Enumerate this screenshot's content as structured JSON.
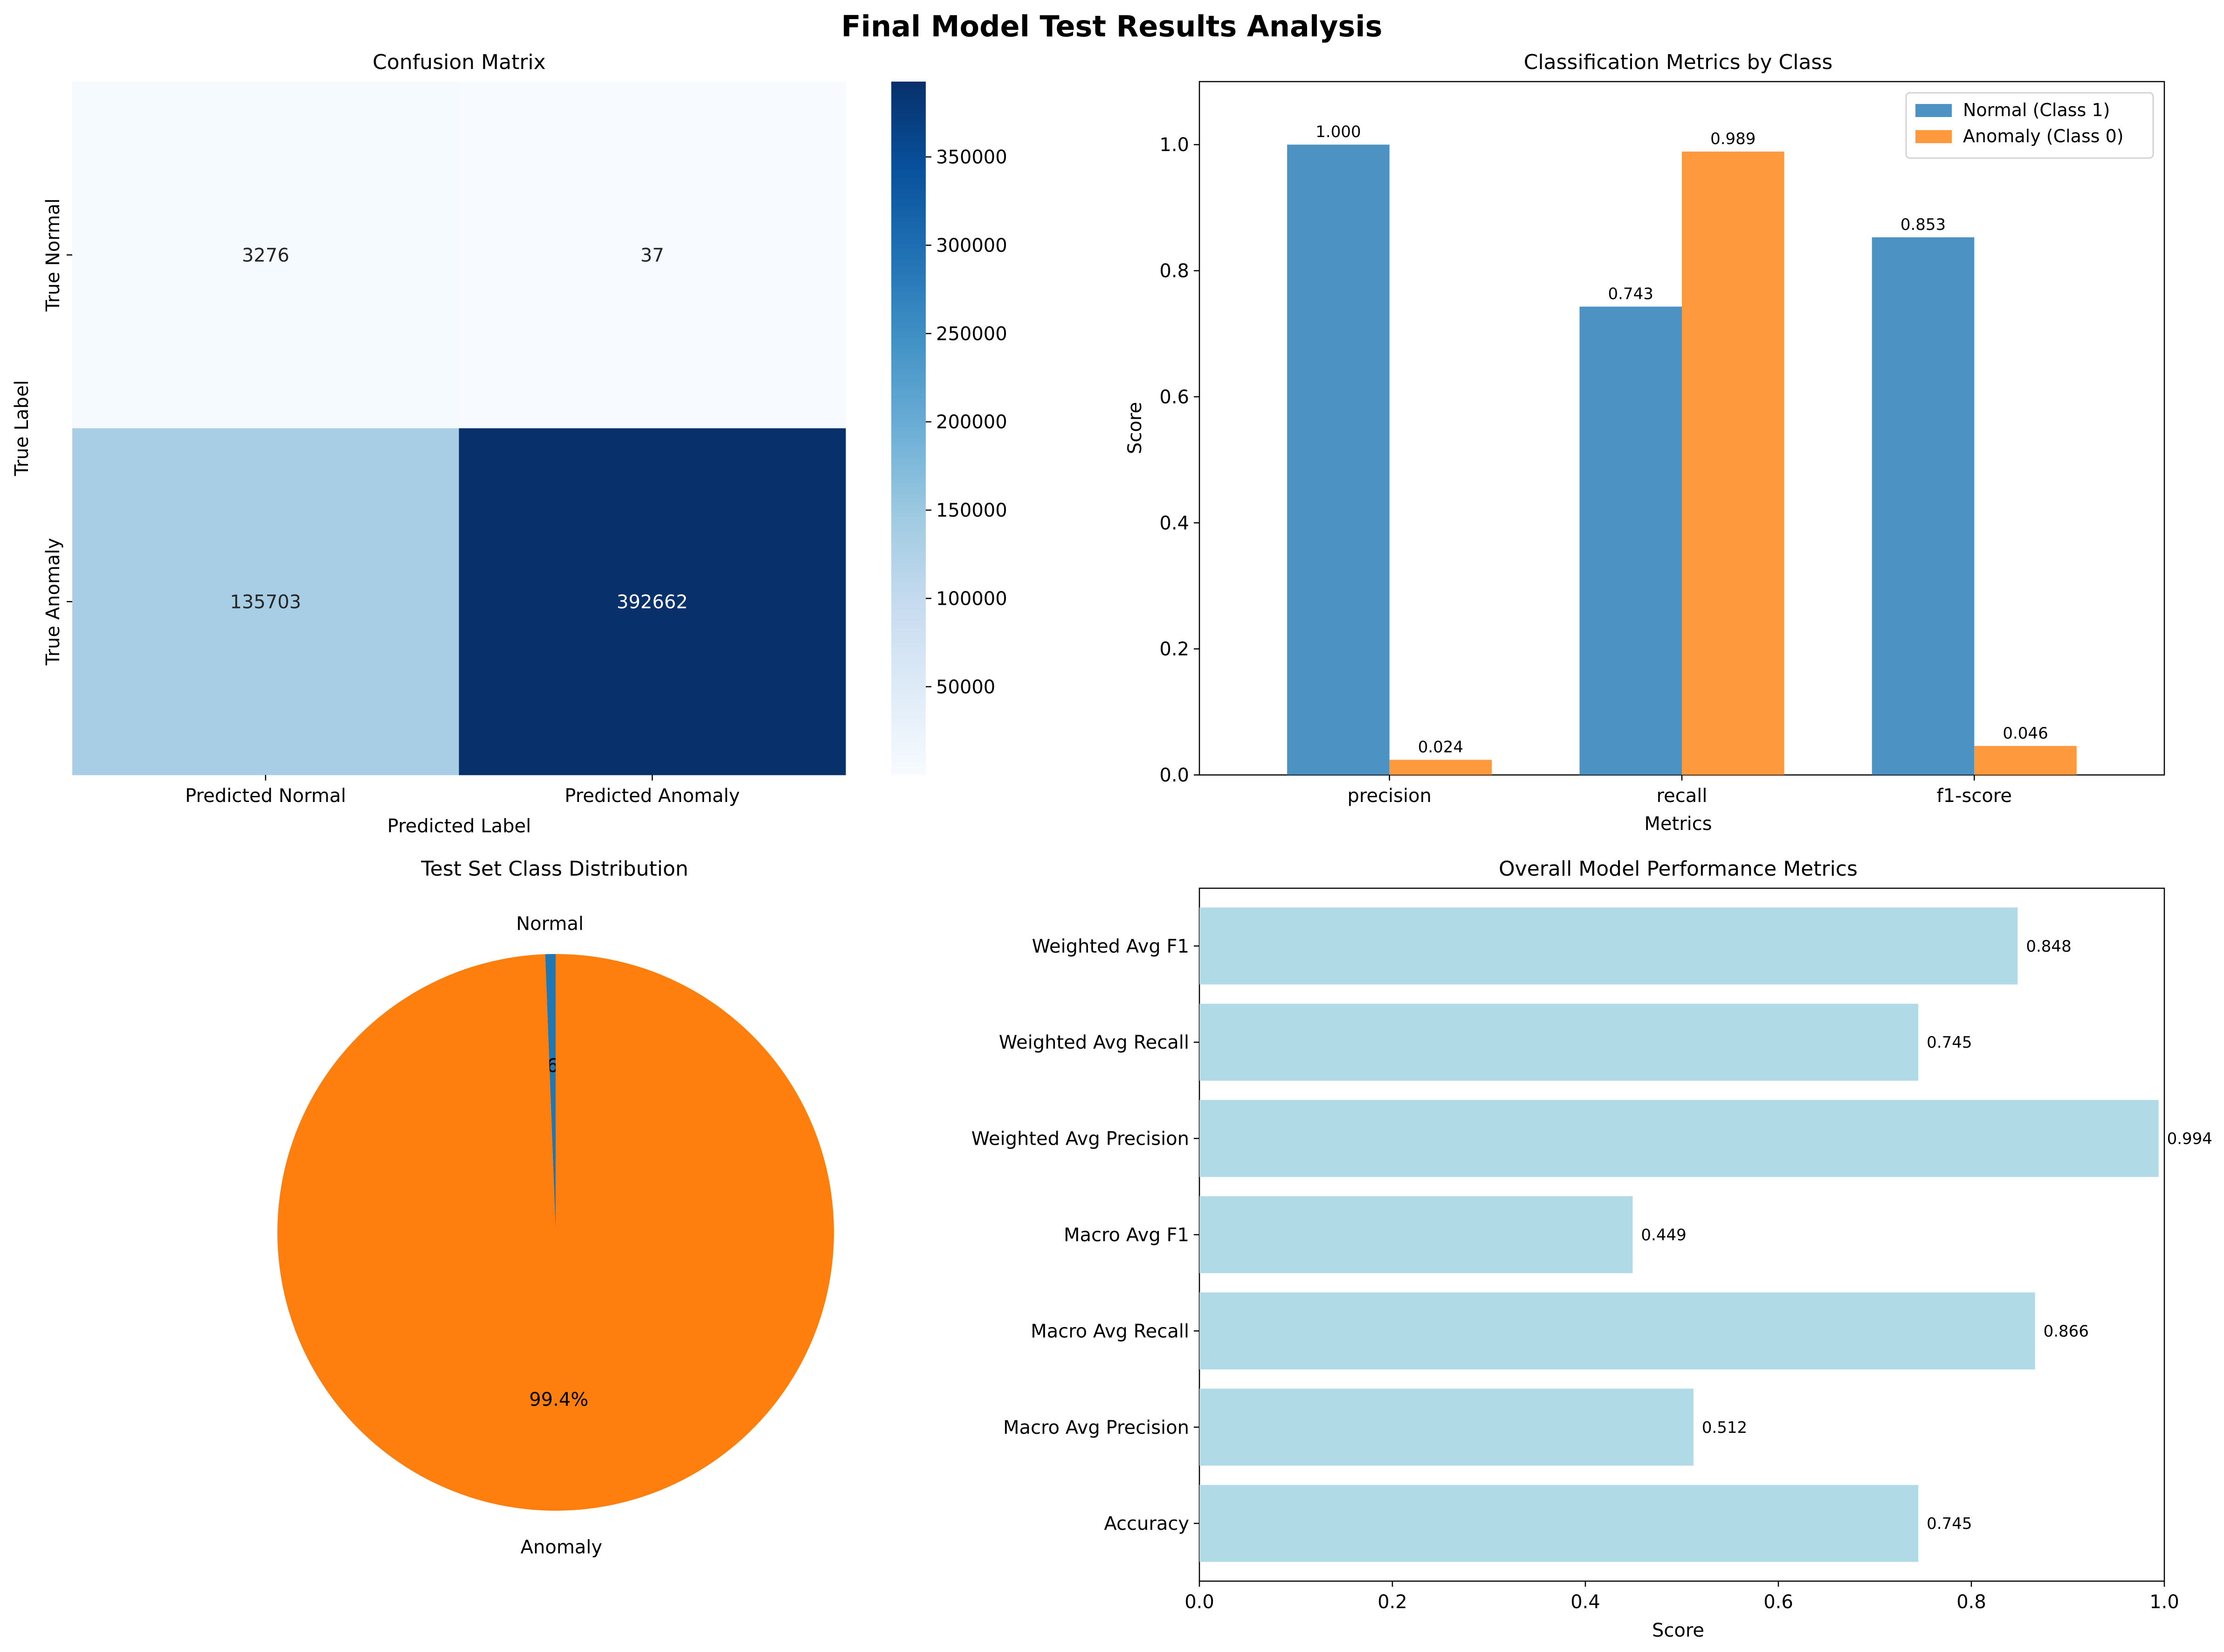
{
  "figure": {
    "title": "Final Model Test Results Analysis"
  },
  "chart_data": [
    {
      "type": "heatmap",
      "title": "Confusion Matrix",
      "xlabel": "Predicted Label",
      "ylabel": "True Label",
      "x_categories": [
        "Predicted Normal",
        "Predicted Anomaly"
      ],
      "y_categories": [
        "True Normal",
        "True Anomaly"
      ],
      "values": [
        [
          3276,
          37
        ],
        [
          135703,
          392662
        ]
      ],
      "colormap": "Blues",
      "colorbar": {
        "vmin": 37,
        "vmax": 392662,
        "ticks": [
          50000,
          100000,
          150000,
          200000,
          250000,
          300000,
          350000
        ]
      }
    },
    {
      "type": "bar",
      "title": "Classification Metrics by Class",
      "xlabel": "Metrics",
      "ylabel": "Score",
      "categories": [
        "precision",
        "recall",
        "f1-score"
      ],
      "series": [
        {
          "name": "Normal (Class 1)",
          "values": [
            1.0,
            0.743,
            0.853
          ],
          "labels": [
            "1.000",
            "0.743",
            "0.853"
          ],
          "color": "#1f77b4"
        },
        {
          "name": "Anomaly (Class 0)",
          "values": [
            0.024,
            0.989,
            0.046
          ],
          "labels": [
            "0.024",
            "0.989",
            "0.046"
          ],
          "color": "#ff7f0e"
        }
      ],
      "ylim": [
        0,
        1.1
      ],
      "yticks": [
        "0.0",
        "0.2",
        "0.4",
        "0.6",
        "0.8",
        "1.0"
      ],
      "legend": "top-right"
    },
    {
      "type": "pie",
      "title": "Test Set Class Distribution",
      "slices": [
        {
          "label": "Normal",
          "value": 0.6,
          "pct": "0.6%",
          "color": "#1f77b4"
        },
        {
          "label": "Anomaly",
          "value": 99.4,
          "pct": "99.4%",
          "color": "#ff7f0e"
        }
      ]
    },
    {
      "type": "bar",
      "orientation": "horizontal",
      "title": "Overall Model Performance Metrics",
      "xlabel": "Score",
      "categories": [
        "Accuracy",
        "Macro Avg Precision",
        "Macro Avg Recall",
        "Macro Avg F1",
        "Weighted Avg Precision",
        "Weighted Avg Recall",
        "Weighted Avg F1"
      ],
      "values": [
        0.745,
        0.512,
        0.866,
        0.449,
        0.994,
        0.745,
        0.848
      ],
      "labels": [
        "0.745",
        "0.512",
        "0.866",
        "0.449",
        "0.994",
        "0.745",
        "0.848"
      ],
      "xlim": [
        0,
        1.0
      ],
      "xticks": [
        "0.0",
        "0.2",
        "0.4",
        "0.6",
        "0.8",
        "1.0"
      ],
      "color": "#add8e6"
    }
  ]
}
